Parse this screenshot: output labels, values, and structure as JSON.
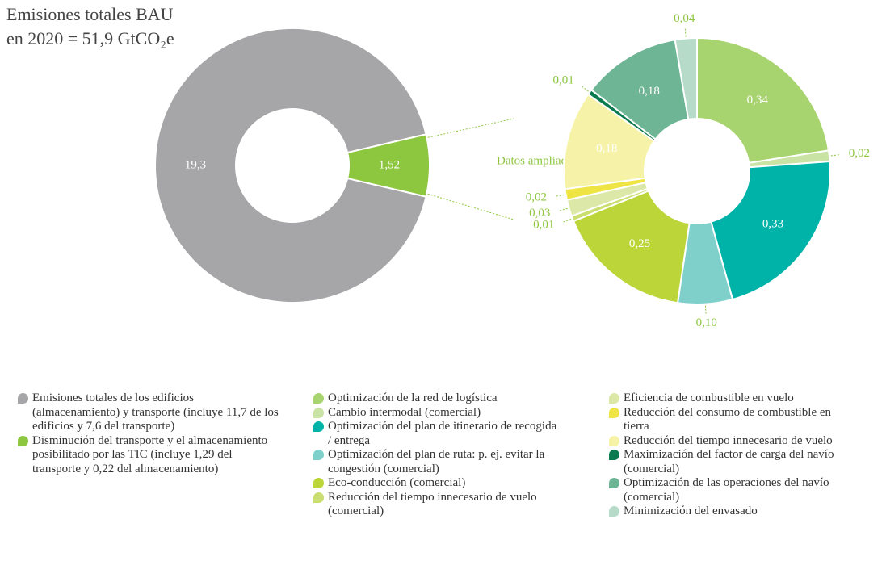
{
  "title": [
    "Emisiones totales BAU",
    "en 2020 = 51,9 GtCO₂e"
  ],
  "annotation": "Datos ampliados",
  "chart_data": [
    {
      "type": "pie",
      "categories": [
        "Emisiones totales de los edificios (almacenamiento) y transporte (incluye 11,7 de los edificios y 7,6 del transporte)",
        "Disminución del transporte y el almacenamiento posibilitado por las TIC (incluye 1,29 del transporte y 0,22 del almacenamiento)"
      ],
      "values": [
        19.3,
        1.52
      ],
      "value_labels": [
        "19,3",
        "1,52"
      ],
      "colors": [
        "#a6a6a8",
        "#8dc63f"
      ]
    },
    {
      "type": "pie",
      "categories": [
        "Optimización de la red de logística",
        "Cambio intermodal (comercial)",
        "Optimización del plan de itinerario de recogida / entrega",
        "Optimización del plan de ruta: p. ej. evitar la congestión (comercial)",
        "Eco-conducción (comercial)",
        "Reducción del tiempo innecesario de vuelo (comercial)",
        "Eficiencia de combustible en vuelo",
        "Reducción del consumo de combustible en tierra",
        "Reducción del tiempo innecesario de vuelo",
        "Maximización del factor de carga del navío (comercial)",
        "Optimización de las operaciones del navío (comercial)",
        "Minimización del envasado"
      ],
      "values": [
        0.34,
        0.02,
        0.33,
        0.1,
        0.25,
        0.01,
        0.03,
        0.02,
        0.18,
        0.01,
        0.18,
        0.04
      ],
      "value_labels": [
        "0,34",
        "0,02",
        "0,33",
        "0,10",
        "0,25",
        "0,01",
        "0,03",
        "0,02",
        "0,18",
        "0,01",
        "0,18",
        "0,04"
      ],
      "colors": [
        "#a8d46f",
        "#c8e3a4",
        "#00b3a9",
        "#7fd0ca",
        "#bcd63a",
        "#c9de6e",
        "#dbe8a8",
        "#eee443",
        "#f6f3a8",
        "#0b7a4f",
        "#6db594",
        "#b6dbc8"
      ]
    }
  ]
}
